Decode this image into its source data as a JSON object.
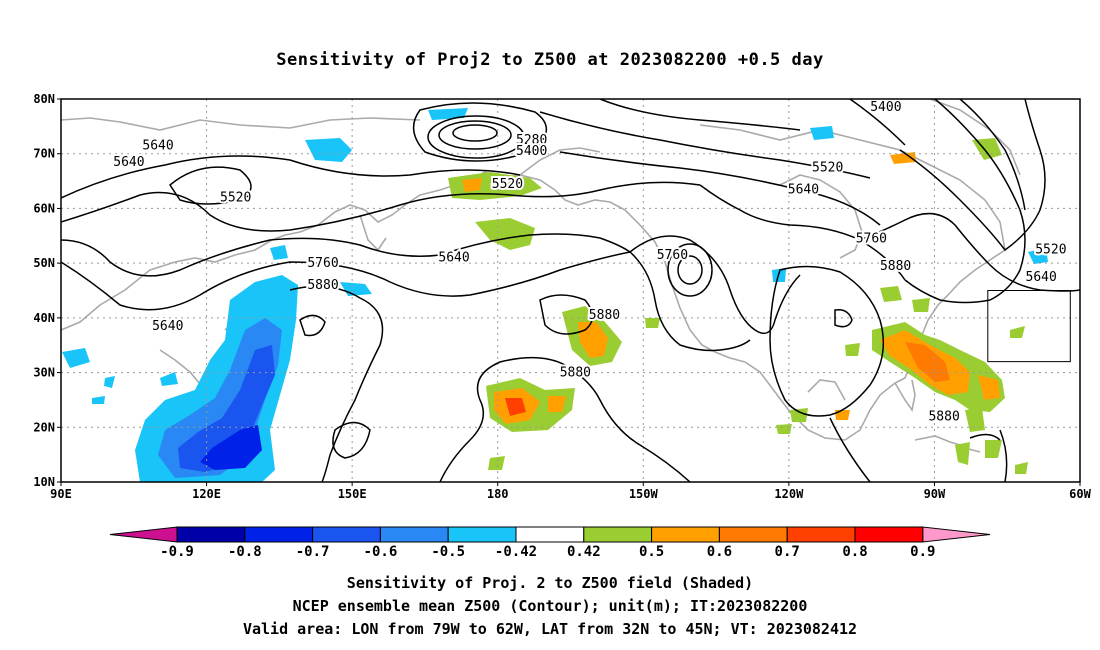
{
  "title": "Sensitivity of Proj2 to Z500 at 2023082200 +0.5 day",
  "map": {
    "lon_range": [
      90,
      300
    ],
    "lat_range": [
      10,
      80
    ],
    "lon_ticks": [
      {
        "lon": 90,
        "label": "90E"
      },
      {
        "lon": 120,
        "label": "120E"
      },
      {
        "lon": 150,
        "label": "150E"
      },
      {
        "lon": 180,
        "label": "180"
      },
      {
        "lon": 210,
        "label": "150W"
      },
      {
        "lon": 240,
        "label": "120W"
      },
      {
        "lon": 270,
        "label": "90W"
      },
      {
        "lon": 300,
        "label": "60W"
      }
    ],
    "lat_ticks": [
      {
        "lat": 10,
        "label": "10N"
      },
      {
        "lat": 20,
        "label": "20N"
      },
      {
        "lat": 30,
        "label": "30N"
      },
      {
        "lat": 40,
        "label": "40N"
      },
      {
        "lat": 50,
        "label": "50N"
      },
      {
        "lat": 60,
        "label": "60N"
      },
      {
        "lat": 70,
        "label": "70N"
      },
      {
        "lat": 80,
        "label": "80N"
      }
    ],
    "valid_box": {
      "lon_w": 281,
      "lon_e": 298,
      "lat_s": 32,
      "lat_n": 45
    },
    "contour_labels": [
      {
        "lon": 110,
        "lat": 71.5,
        "text": "5640"
      },
      {
        "lon": 104,
        "lat": 68.5,
        "text": "5640"
      },
      {
        "lon": 126,
        "lat": 62,
        "text": "5520"
      },
      {
        "lon": 112,
        "lat": 38.5,
        "text": "5640"
      },
      {
        "lon": 144,
        "lat": 50,
        "text": "5760"
      },
      {
        "lon": 144,
        "lat": 46,
        "text": "5880"
      },
      {
        "lon": 171,
        "lat": 51,
        "text": "5640"
      },
      {
        "lon": 182,
        "lat": 64.5,
        "text": "5520"
      },
      {
        "lon": 187,
        "lat": 72.5,
        "text": "5280"
      },
      {
        "lon": 187,
        "lat": 70.5,
        "text": "5400"
      },
      {
        "lon": 202,
        "lat": 40.5,
        "text": "5880"
      },
      {
        "lon": 196,
        "lat": 30,
        "text": "5880"
      },
      {
        "lon": 216,
        "lat": 51.5,
        "text": "5760"
      },
      {
        "lon": 248,
        "lat": 67.5,
        "text": "5520"
      },
      {
        "lon": 243,
        "lat": 63.5,
        "text": "5640"
      },
      {
        "lon": 260,
        "lat": 78.5,
        "text": "5400"
      },
      {
        "lon": 257,
        "lat": 54.5,
        "text": "5760"
      },
      {
        "lon": 262,
        "lat": 49.5,
        "text": "5880"
      },
      {
        "lon": 272,
        "lat": 22,
        "text": "5880"
      },
      {
        "lon": 294,
        "lat": 52.5,
        "text": "5520"
      },
      {
        "lon": 292,
        "lat": 47.5,
        "text": "5640"
      }
    ]
  },
  "colorbar": {
    "labels": [
      "-0.9",
      "-0.8",
      "-0.7",
      "-0.6",
      "-0.5",
      "-0.42",
      "0.42",
      "0.5",
      "0.6",
      "0.7",
      "0.8",
      "0.9"
    ],
    "colors": [
      "#0000a8",
      "#0022e8",
      "#1a55f0",
      "#2a88f5",
      "#18c4f8",
      "#ffffff",
      "#9acd32",
      "#ffa000",
      "#ff7a00",
      "#ff4000",
      "#ff0000"
    ],
    "low_extend_color": "#cc1090",
    "high_extend_color": "#ff99cc"
  },
  "captions": {
    "line1": "Sensitivity of Proj. 2 to Z500 field (Shaded)",
    "line2": "NCEP ensemble mean Z500 (Contour); unit(m); IT:2023082200",
    "line3": "Valid area: LON from 79W to 62W, LAT from 32N to 45N; VT: 2023082412"
  }
}
